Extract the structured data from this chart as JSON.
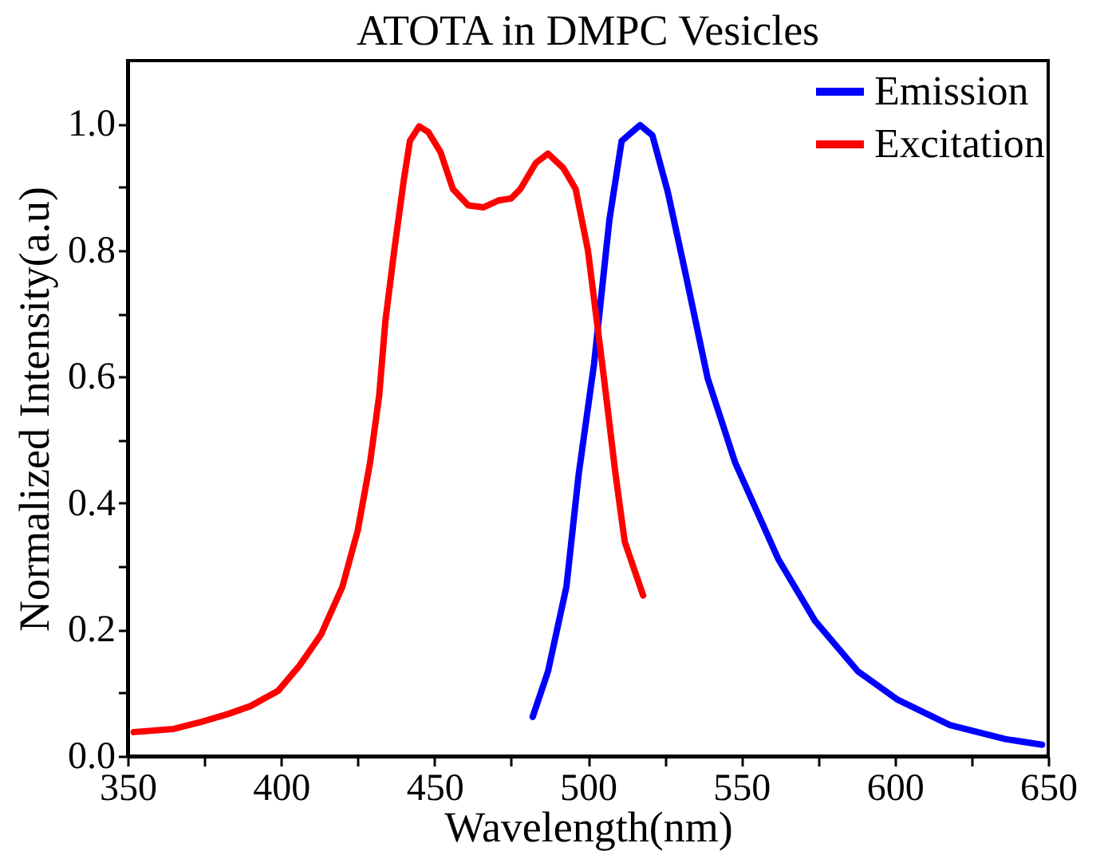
{
  "chart_data": {
    "type": "line",
    "title": "ATOTA in DMPC Vesicles",
    "xlabel": "Wavelength(nm)",
    "ylabel": "Normalized Intensity(a.u)",
    "xlim": [
      350,
      650
    ],
    "ylim": [
      0,
      1.1
    ],
    "xticks": [
      350,
      {
        "value": 375,
        "label": null
      },
      400,
      {
        "value": 425,
        "label": null
      },
      450,
      {
        "value": 475,
        "label": null
      },
      500,
      {
        "value": 525,
        "label": null
      },
      550,
      {
        "value": 575,
        "label": null
      },
      600,
      {
        "value": 625,
        "label": null
      },
      650
    ],
    "yticks": [
      {
        "value": 0,
        "label": "0.0"
      },
      {
        "value": 0.1,
        "label": null
      },
      {
        "value": 0.2,
        "label": "0.2"
      },
      {
        "value": 0.3,
        "label": null
      },
      {
        "value": 0.4,
        "label": "0.4"
      },
      {
        "value": 0.5,
        "label": null
      },
      {
        "value": 0.6,
        "label": "0.6"
      },
      {
        "value": 0.7,
        "label": null
      },
      {
        "value": 0.8,
        "label": "0.8"
      },
      {
        "value": 0.9,
        "label": null
      },
      {
        "value": 1.0,
        "label": "1.0"
      }
    ],
    "legend": "top right",
    "grid": false,
    "line_style": "solid",
    "marker": "none",
    "series": [
      {
        "name": "Emission",
        "color": "#0000ff",
        "x": [
          482,
          487,
          493,
          497,
          502,
          507,
          511,
          517,
          521,
          526,
          532,
          539,
          548,
          562,
          574,
          588,
          601,
          618,
          636,
          648
        ],
        "values": [
          0.062,
          0.134,
          0.268,
          0.446,
          0.62,
          0.848,
          0.973,
          0.998,
          0.982,
          0.893,
          0.759,
          0.598,
          0.464,
          0.312,
          0.214,
          0.134,
          0.089,
          0.049,
          0.027,
          0.018
        ]
      },
      {
        "name": "Excitation",
        "color": "#ff0000",
        "x": [
          352,
          365,
          374,
          383,
          390,
          399,
          406,
          413,
          420,
          425,
          429,
          432,
          434,
          437,
          440,
          442,
          445,
          448,
          452,
          456,
          461,
          466,
          471,
          475,
          478,
          483,
          487,
          492,
          496,
          500,
          505,
          509,
          512,
          518
        ],
        "values": [
          0.038,
          0.043,
          0.054,
          0.067,
          0.079,
          0.103,
          0.143,
          0.192,
          0.268,
          0.357,
          0.464,
          0.571,
          0.688,
          0.804,
          0.911,
          0.973,
          0.996,
          0.987,
          0.955,
          0.897,
          0.871,
          0.868,
          0.879,
          0.882,
          0.897,
          0.938,
          0.953,
          0.93,
          0.897,
          0.8,
          0.607,
          0.446,
          0.339,
          0.254
        ]
      }
    ]
  }
}
